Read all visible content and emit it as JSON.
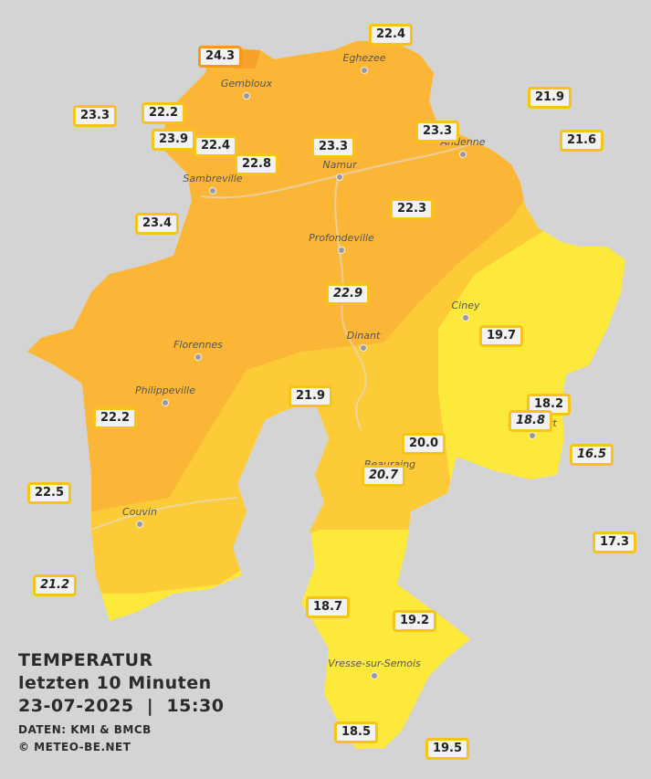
{
  "stations": [
    "22.4",
    "24.3",
    "21.9",
    "23.3",
    "22.2",
    "23.9",
    "22.4",
    "23.3",
    "23.3",
    "21.6",
    "22.8",
    "22.3",
    "23.4",
    "22.9",
    "19.7",
    "21.9",
    "18.2",
    "18.8",
    "22.2",
    "20.0",
    "16.5",
    "20.7",
    "22.5",
    "17.3",
    "21.2",
    "18.7",
    "19.2",
    "18.5",
    "19.5"
  ],
  "places": [
    "Eghezee",
    "Gembloux",
    "Andenne",
    "Namur",
    "Sambreville",
    "Profondeville",
    "Ciney",
    "Dinant",
    "Florennes",
    "Philippeville",
    "Rochefort",
    "Beauraing",
    "Couvin",
    "Vresse-sur-Semois"
  ],
  "legend": {
    "title": "TEMPERATUR",
    "period": "letzten 10 Minuten",
    "timestamp": "23-07-2025  |  15:30",
    "source": "DATEN: KMI & BMCB",
    "copyright": "© METEO-BE.NET"
  }
}
